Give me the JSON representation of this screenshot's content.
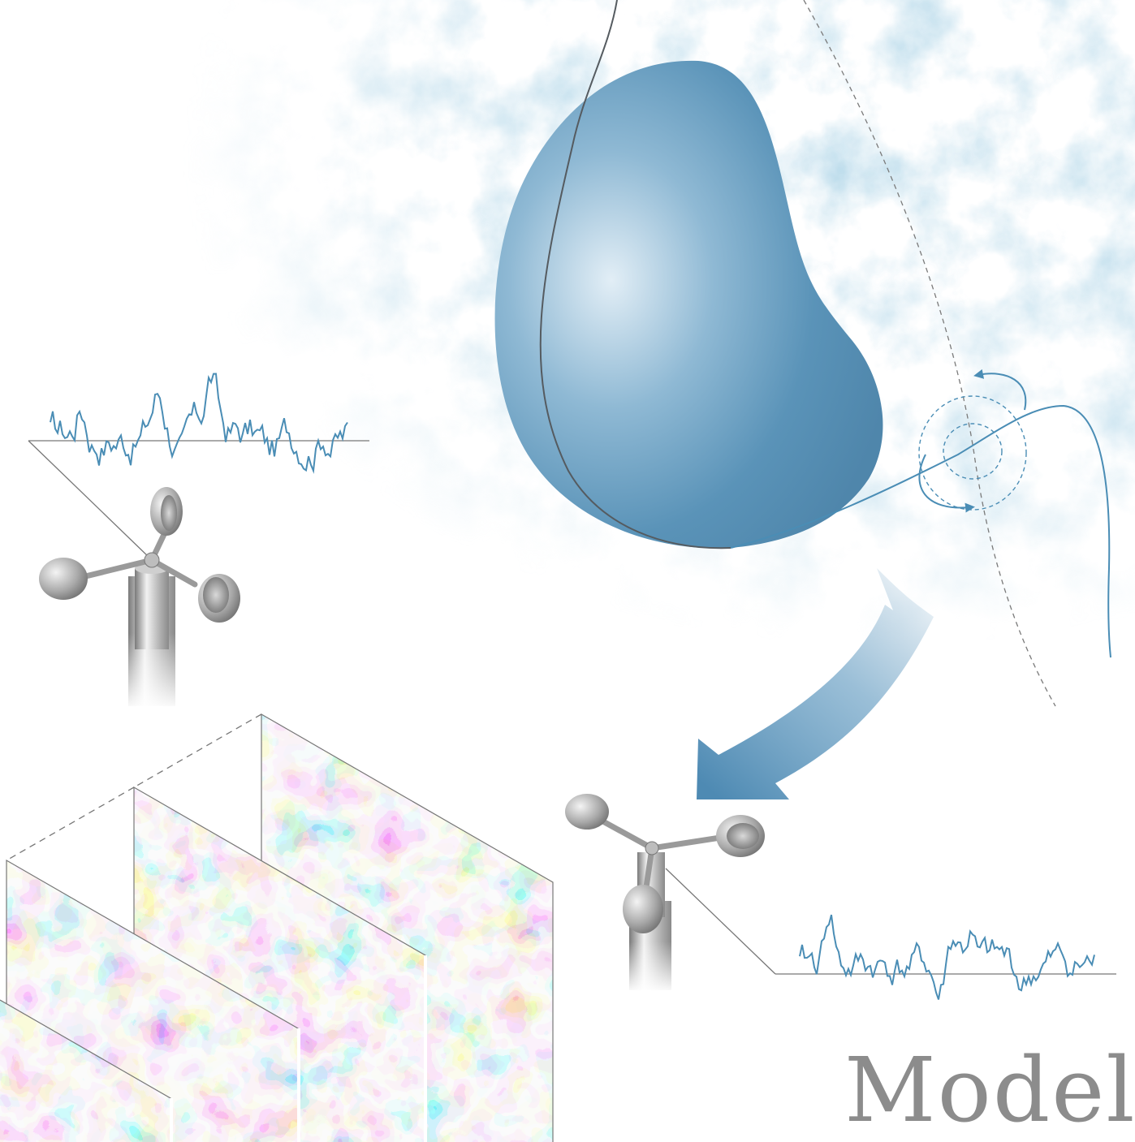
{
  "label": {
    "text": "Model"
  },
  "colors": {
    "accent": "#4a8db5",
    "blob": "#5a93b8",
    "positive": "#c2443a",
    "negative": "#2d8ab8",
    "line": "#777777",
    "text": "#8c8c8c"
  },
  "icons": {
    "anemometer_top": "anemometer-icon",
    "anemometer_bottom": "anemometer-icon",
    "arrow": "curved-arrow-icon"
  },
  "panels": {
    "count": 4
  }
}
